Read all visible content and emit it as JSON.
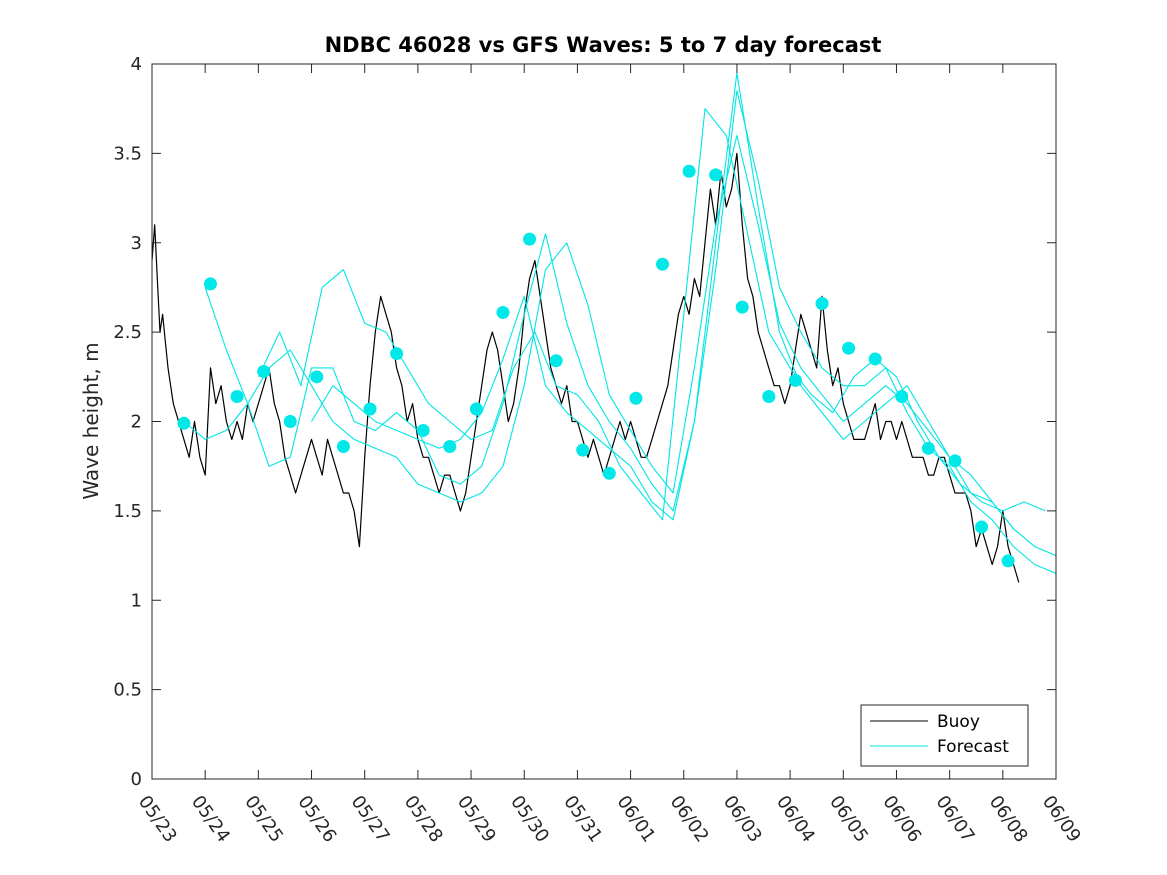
{
  "chart_data": {
    "type": "line",
    "title": "NDBC 46028 vs GFS Waves: 5 to 7 day forecast",
    "ylabel": "Wave height, m",
    "xlabel": "",
    "xlim": [
      0,
      17
    ],
    "ylim": [
      0,
      4
    ],
    "yticks": [
      0,
      0.5,
      1,
      1.5,
      2,
      2.5,
      3,
      3.5,
      4
    ],
    "ytick_labels": [
      "0",
      "0.5",
      "1",
      "1.5",
      "2",
      "2.5",
      "3",
      "3.5",
      "4"
    ],
    "xticks": [
      0,
      1,
      2,
      3,
      4,
      5,
      6,
      7,
      8,
      9,
      10,
      11,
      12,
      13,
      14,
      15,
      16,
      17
    ],
    "xtick_labels": [
      "05/23",
      "05/24",
      "05/25",
      "05/26",
      "05/27",
      "05/28",
      "05/29",
      "05/30",
      "05/31",
      "06/01",
      "06/02",
      "06/03",
      "06/04",
      "06/05",
      "06/06",
      "06/07",
      "06/08",
      "06/09"
    ],
    "x_unit_note": "",
    "grid": false,
    "legend": {
      "position": "bottom-right",
      "entries": [
        "Buoy",
        "Forecast"
      ]
    },
    "colors": {
      "buoy": "#000000",
      "forecast": "#00e5e5",
      "marker": "#00e8e8"
    },
    "series": [
      {
        "name": "Buoy",
        "style": "line",
        "color": "#000000",
        "x": [
          0.0,
          0.05,
          0.1,
          0.15,
          0.2,
          0.3,
          0.4,
          0.5,
          0.6,
          0.7,
          0.8,
          0.9,
          1.0,
          1.1,
          1.2,
          1.3,
          1.4,
          1.5,
          1.6,
          1.7,
          1.8,
          1.9,
          2.0,
          2.1,
          2.2,
          2.3,
          2.4,
          2.5,
          2.6,
          2.7,
          2.8,
          2.9,
          3.0,
          3.1,
          3.2,
          3.3,
          3.4,
          3.5,
          3.6,
          3.7,
          3.8,
          3.9,
          4.0,
          4.1,
          4.2,
          4.3,
          4.4,
          4.5,
          4.6,
          4.7,
          4.8,
          4.9,
          5.0,
          5.1,
          5.2,
          5.3,
          5.4,
          5.5,
          5.6,
          5.7,
          5.8,
          5.9,
          6.0,
          6.1,
          6.2,
          6.3,
          6.4,
          6.5,
          6.6,
          6.7,
          6.8,
          6.9,
          7.0,
          7.1,
          7.2,
          7.3,
          7.4,
          7.5,
          7.6,
          7.7,
          7.8,
          7.9,
          8.0,
          8.1,
          8.2,
          8.3,
          8.4,
          8.5,
          8.6,
          8.7,
          8.8,
          8.9,
          9.0,
          9.1,
          9.2,
          9.3,
          9.4,
          9.5,
          9.6,
          9.7,
          9.8,
          9.9,
          10.0,
          10.1,
          10.2,
          10.3,
          10.4,
          10.5,
          10.6,
          10.7,
          10.8,
          10.9,
          11.0,
          11.1,
          11.2,
          11.3,
          11.4,
          11.5,
          11.6,
          11.7,
          11.8,
          11.9,
          12.0,
          12.1,
          12.2,
          12.3,
          12.4,
          12.5,
          12.6,
          12.7,
          12.8,
          12.9,
          13.0,
          13.1,
          13.2,
          13.3,
          13.4,
          13.5,
          13.6,
          13.7,
          13.8,
          13.9,
          14.0,
          14.1,
          14.2,
          14.3,
          14.4,
          14.5,
          14.6,
          14.7,
          14.8,
          14.9,
          15.0,
          15.1,
          15.2,
          15.3,
          15.4,
          15.5,
          15.6,
          15.7,
          15.8,
          15.9,
          16.0,
          16.1,
          16.2,
          16.3
        ],
        "y": [
          2.9,
          3.1,
          2.8,
          2.5,
          2.6,
          2.3,
          2.1,
          2.0,
          1.9,
          1.8,
          2.0,
          1.8,
          1.7,
          2.3,
          2.1,
          2.2,
          2.0,
          1.9,
          2.0,
          1.9,
          2.1,
          2.0,
          2.1,
          2.2,
          2.3,
          2.1,
          2.0,
          1.8,
          1.7,
          1.6,
          1.7,
          1.8,
          1.9,
          1.8,
          1.7,
          1.9,
          1.8,
          1.7,
          1.6,
          1.6,
          1.5,
          1.3,
          1.8,
          2.2,
          2.5,
          2.7,
          2.6,
          2.5,
          2.3,
          2.2,
          2.0,
          2.1,
          1.9,
          1.8,
          1.8,
          1.7,
          1.6,
          1.7,
          1.7,
          1.6,
          1.5,
          1.6,
          1.8,
          2.0,
          2.2,
          2.4,
          2.5,
          2.4,
          2.2,
          2.0,
          2.1,
          2.3,
          2.6,
          2.8,
          2.9,
          2.7,
          2.5,
          2.3,
          2.2,
          2.1,
          2.2,
          2.0,
          2.0,
          1.9,
          1.8,
          1.9,
          1.8,
          1.7,
          1.8,
          1.9,
          2.0,
          1.9,
          2.0,
          1.9,
          1.8,
          1.8,
          1.9,
          2.0,
          2.1,
          2.2,
          2.4,
          2.6,
          2.7,
          2.6,
          2.8,
          2.7,
          3.0,
          3.3,
          3.1,
          3.4,
          3.2,
          3.3,
          3.5,
          3.1,
          2.8,
          2.7,
          2.5,
          2.4,
          2.3,
          2.2,
          2.2,
          2.1,
          2.2,
          2.4,
          2.6,
          2.5,
          2.4,
          2.3,
          2.7,
          2.4,
          2.2,
          2.3,
          2.1,
          2.0,
          1.9,
          1.9,
          1.9,
          2.0,
          2.1,
          1.9,
          2.0,
          2.0,
          1.9,
          2.0,
          1.9,
          1.8,
          1.8,
          1.8,
          1.7,
          1.7,
          1.8,
          1.8,
          1.7,
          1.6,
          1.6,
          1.6,
          1.5,
          1.3,
          1.4,
          1.3,
          1.2,
          1.3,
          1.5,
          1.3,
          1.2,
          1.1
        ]
      },
      {
        "name": "Forecast",
        "style": "line",
        "color": "#00e5e5",
        "x": [
          0.6,
          1.0,
          1.4,
          1.8,
          2.2,
          2.6,
          3.0,
          3.4,
          3.8,
          4.2,
          4.6,
          5.0,
          5.4,
          5.8,
          6.2,
          6.6,
          7.0,
          7.4,
          7.8,
          8.2,
          8.6,
          9.0,
          9.4,
          9.8,
          10.2,
          10.6,
          11.0,
          11.4,
          11.8,
          12.2,
          12.6,
          13.0,
          13.4,
          13.8,
          14.2,
          14.6,
          15.0,
          15.4,
          15.8,
          16.2,
          16.6,
          17.0
        ],
        "y": [
          2.0,
          1.9,
          1.95,
          2.1,
          2.3,
          2.4,
          2.2,
          2.0,
          1.9,
          1.85,
          1.8,
          1.65,
          1.6,
          1.55,
          1.6,
          1.75,
          2.2,
          2.85,
          3.0,
          2.65,
          2.15,
          1.95,
          1.75,
          1.6,
          2.3,
          3.1,
          3.6,
          3.1,
          2.55,
          2.3,
          2.15,
          2.0,
          2.1,
          2.2,
          2.1,
          1.95,
          1.8,
          1.7,
          1.55,
          1.4,
          1.3,
          1.25
        ]
      },
      {
        "name": "",
        "style": "line",
        "color": "#00e5e5",
        "x": [
          1.0,
          1.4,
          1.8,
          2.2,
          2.6,
          3.0,
          3.4,
          3.8,
          4.2,
          4.6,
          5.0,
          5.4,
          5.8,
          6.2,
          6.6,
          7.0,
          7.4,
          7.8,
          8.2,
          8.6,
          9.0,
          9.4,
          9.8,
          10.2,
          10.6,
          11.0,
          11.4,
          11.8,
          12.2,
          12.6,
          13.0,
          13.4,
          13.8,
          14.2,
          14.6,
          15.0,
          15.4,
          15.8,
          16.2,
          16.6,
          17.0
        ],
        "y": [
          2.75,
          2.4,
          2.1,
          1.75,
          1.8,
          2.3,
          2.3,
          2.0,
          1.95,
          2.05,
          1.95,
          1.7,
          1.65,
          1.75,
          2.1,
          2.6,
          3.05,
          2.55,
          2.2,
          2.0,
          1.85,
          1.65,
          1.5,
          2.0,
          2.85,
          3.85,
          3.35,
          2.75,
          2.5,
          2.3,
          2.2,
          2.2,
          2.3,
          2.05,
          1.85,
          1.75,
          1.55,
          1.45,
          1.3,
          1.2,
          1.15
        ]
      },
      {
        "name": "",
        "style": "line",
        "color": "#00e5e5",
        "x": [
          2.0,
          2.4,
          2.8,
          3.2,
          3.6,
          4.0,
          4.4,
          4.8,
          5.2,
          5.6,
          6.0,
          6.4,
          6.8,
          7.2,
          7.6,
          8.0,
          8.4,
          8.8,
          9.2,
          9.6,
          10.0,
          10.4,
          10.8,
          11.2,
          11.6,
          12.0,
          12.4,
          12.8,
          13.2,
          13.6,
          14.0,
          14.4,
          14.8,
          15.2,
          15.6,
          16.0,
          16.4,
          16.8
        ],
        "y": [
          2.25,
          2.5,
          2.2,
          2.75,
          2.85,
          2.55,
          2.5,
          2.3,
          2.1,
          2.0,
          1.9,
          1.95,
          2.3,
          2.5,
          2.2,
          2.15,
          2.0,
          1.75,
          1.6,
          1.45,
          2.6,
          3.75,
          3.6,
          3.05,
          2.5,
          2.3,
          2.15,
          2.05,
          2.25,
          2.35,
          2.25,
          2.0,
          1.8,
          1.65,
          1.55,
          1.5,
          1.55,
          1.5
        ]
      },
      {
        "name": "",
        "style": "line",
        "color": "#00e5e5",
        "x": [
          3.0,
          3.4,
          3.8,
          4.2,
          4.6,
          5.0,
          5.4,
          5.8,
          6.2,
          6.6,
          7.0,
          7.4,
          7.8,
          8.2,
          8.6,
          9.0,
          9.4,
          9.8,
          10.2,
          10.6,
          11.0,
          11.4,
          11.8,
          12.2,
          12.6,
          13.0,
          13.4,
          13.8,
          14.2,
          14.6,
          15.0,
          15.4,
          15.8,
          16.2
        ],
        "y": [
          2.0,
          2.2,
          2.1,
          2.0,
          1.95,
          1.9,
          1.85,
          1.9,
          2.05,
          2.35,
          2.7,
          2.2,
          2.05,
          1.95,
          1.85,
          1.75,
          1.55,
          1.45,
          2.0,
          3.0,
          3.95,
          3.2,
          2.5,
          2.2,
          2.05,
          1.9,
          2.0,
          2.1,
          2.2,
          2.0,
          1.8,
          1.6,
          1.55,
          1.4
        ]
      },
      {
        "name": "",
        "style": "markers",
        "color": "#00e8e8",
        "x": [
          0.6,
          1.1,
          1.6,
          2.1,
          2.6,
          3.1,
          3.6,
          4.1,
          4.6,
          5.1,
          5.6,
          6.1,
          6.6,
          7.1,
          7.6,
          8.1,
          8.6,
          9.1,
          9.6,
          10.1,
          10.6,
          11.1,
          11.6,
          12.1,
          12.6,
          13.1,
          13.6,
          14.1,
          14.6,
          15.1,
          15.6,
          16.1
        ],
        "y": [
          1.99,
          2.77,
          2.14,
          2.28,
          2.0,
          2.25,
          1.86,
          2.07,
          2.38,
          1.95,
          1.86,
          2.07,
          2.61,
          3.02,
          2.34,
          1.84,
          1.71,
          2.13,
          2.88,
          3.4,
          3.38,
          2.64,
          2.14,
          2.23,
          2.66,
          2.41,
          2.35,
          2.14,
          1.85,
          1.78,
          1.41,
          1.22
        ]
      }
    ]
  }
}
